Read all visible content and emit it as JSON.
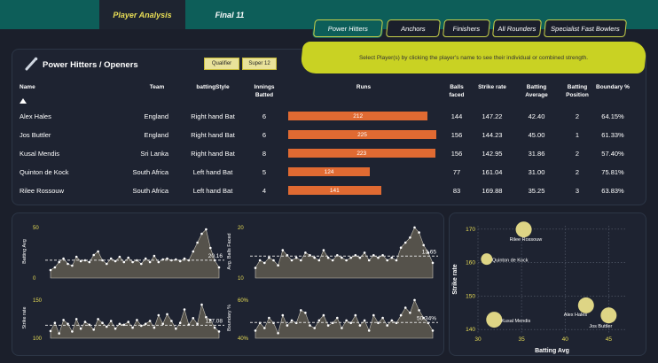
{
  "nav": {
    "tabs": [
      {
        "label": "Player Analysis"
      },
      {
        "label": "Final 11"
      }
    ]
  },
  "player_tabs": [
    {
      "label": "Power Hitters"
    },
    {
      "label": "Anchors"
    },
    {
      "label": "Finishers"
    },
    {
      "label": "All Rounders"
    },
    {
      "label": "Specialist Fast Bowlers"
    }
  ],
  "section": {
    "title": "Power Hitters / Openers",
    "chips": [
      "Qualifier",
      "Super 12"
    ]
  },
  "hint": "Select Player(s) by clicking the player's name to see their individual or combined strength.",
  "table": {
    "headers": [
      "Name",
      "Team",
      "battingStyle",
      "Innings Batted",
      "Runs",
      "Balls faced",
      "Strike rate",
      "Batting Average",
      "Batting Position",
      "Boundary %"
    ],
    "sort_icon": "sort-up-icon",
    "rows": [
      {
        "name": "Alex Hales",
        "team": "England",
        "style": "Right hand Bat",
        "innings": "6",
        "runs": 212,
        "balls": "144",
        "sr": "147.22",
        "avg": "42.40",
        "pos": "2",
        "boundary": "64.15%"
      },
      {
        "name": "Jos Buttler",
        "team": "England",
        "style": "Right hand Bat",
        "innings": "6",
        "runs": 225,
        "balls": "156",
        "sr": "144.23",
        "avg": "45.00",
        "pos": "1",
        "boundary": "61.33%"
      },
      {
        "name": "Kusal Mendis",
        "team": "Sri Lanka",
        "style": "Right hand Bat",
        "innings": "8",
        "runs": 223,
        "balls": "156",
        "sr": "142.95",
        "avg": "31.86",
        "pos": "2",
        "boundary": "57.40%"
      },
      {
        "name": "Quinton de Kock",
        "team": "South Africa",
        "style": "Left hand Bat",
        "innings": "5",
        "runs": 124,
        "balls": "77",
        "sr": "161.04",
        "avg": "31.00",
        "pos": "2",
        "boundary": "75.81%"
      },
      {
        "name": "Rilee Rossouw",
        "team": "South Africa",
        "style": "Left hand Bat",
        "innings": "4",
        "runs": 141,
        "balls": "83",
        "sr": "169.88",
        "avg": "35.25",
        "pos": "3",
        "boundary": "63.83%"
      }
    ]
  },
  "colors": {
    "accent": "#c9d223",
    "bar": "#e06a32",
    "header": "#0d5e59",
    "point": "#e8dd55"
  },
  "chart_data": [
    {
      "type": "area",
      "ylabel": "Batting Avg",
      "yticks": [
        "0",
        "50"
      ],
      "ylim": [
        0,
        60
      ],
      "avg_label": "20.16",
      "avg": 20.16,
      "values": [
        9,
        12,
        18,
        22,
        16,
        14,
        24,
        19,
        20,
        18,
        26,
        30,
        20,
        16,
        22,
        19,
        24,
        18,
        23,
        18,
        20,
        16,
        22,
        18,
        25,
        18,
        21,
        22,
        20,
        21,
        19,
        22,
        20,
        30,
        40,
        50,
        55,
        34,
        20,
        12
      ]
    },
    {
      "type": "area",
      "ylabel": "Avg. Balls Faced",
      "yticks": [
        "10",
        "20"
      ],
      "ylim": [
        5,
        26
      ],
      "avg_label": "13.65",
      "avg": 13.65,
      "values": [
        9,
        12,
        11,
        13,
        12,
        10,
        16,
        14,
        12,
        13,
        12,
        15,
        14,
        13,
        12,
        16,
        13,
        12,
        14,
        13,
        12,
        13,
        14,
        13,
        15,
        12,
        14,
        13,
        14,
        12,
        13,
        12,
        17,
        19,
        21,
        25,
        23,
        18,
        15,
        11
      ]
    },
    {
      "type": "area",
      "ylabel": "Strike rate",
      "yticks": [
        "100",
        "150"
      ],
      "ylim": [
        90,
        175
      ],
      "avg_label": "117.08",
      "avg": 117.08,
      "values": [
        105,
        122,
        100,
        128,
        120,
        104,
        130,
        110,
        124,
        118,
        108,
        130,
        122,
        114,
        126,
        110,
        120,
        118,
        124,
        112,
        128,
        116,
        120,
        126,
        112,
        138,
        120,
        140,
        126,
        110,
        122,
        150,
        118,
        132,
        120,
        160,
        134,
        128,
        112,
        104
      ]
    },
    {
      "type": "area",
      "ylabel": "Boundary %",
      "yticks": [
        "40%",
        "60%"
      ],
      "ylim": [
        38,
        70
      ],
      "avg_label": "50.34%",
      "avg": 50.34,
      "values": [
        44,
        50,
        46,
        54,
        50,
        42,
        56,
        48,
        52,
        50,
        60,
        58,
        48,
        46,
        52,
        56,
        48,
        50,
        54,
        46,
        52,
        50,
        56,
        48,
        52,
        44,
        56,
        50,
        54,
        48,
        52,
        50,
        56,
        62,
        58,
        68,
        60,
        54,
        50,
        44
      ]
    },
    {
      "type": "scatter",
      "xlabel": "Batting Avg",
      "ylabel": "Strike rate",
      "xlim": [
        30,
        47
      ],
      "ylim": [
        139,
        171
      ],
      "xticks": [
        30,
        35,
        40,
        45
      ],
      "yticks": [
        140,
        150,
        160,
        170
      ],
      "points": [
        {
          "label": "Rilee Rossouw",
          "x": 35.25,
          "y": 169.88
        },
        {
          "label": "Quinton de Kock",
          "x": 31.0,
          "y": 161.04
        },
        {
          "label": "Alex Hales",
          "x": 42.4,
          "y": 147.22
        },
        {
          "label": "Jos Buttler",
          "x": 45.0,
          "y": 144.23
        },
        {
          "label": "Kusal Mendis",
          "x": 31.86,
          "y": 142.95
        }
      ]
    }
  ]
}
